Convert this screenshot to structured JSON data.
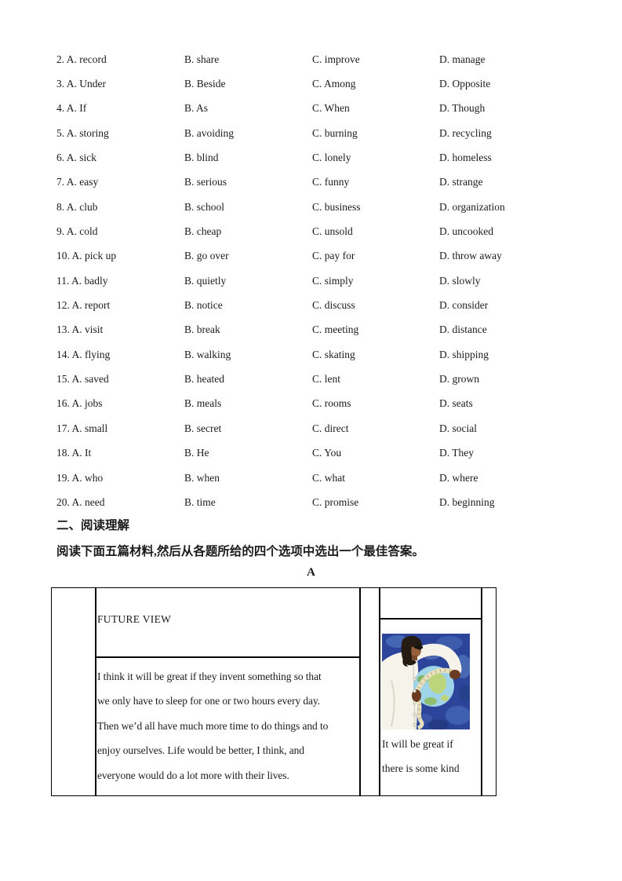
{
  "cloze": {
    "rows": [
      [
        "2. A. record",
        "B. share",
        "C. improve",
        "D. manage"
      ],
      [
        "3. A. Under",
        "B. Beside",
        "C. Among",
        "D. Opposite"
      ],
      [
        "4. A. If",
        "B. As",
        "C. When",
        "D. Though"
      ],
      [
        "5. A. storing",
        "B. avoiding",
        "C. burning",
        "D. recycling"
      ],
      [
        "6. A. sick",
        "B. blind",
        "C. lonely",
        "D. homeless"
      ],
      [
        "7. A. easy",
        "B. serious",
        "C. funny",
        "D. strange"
      ],
      [
        "8. A. club",
        "B. school",
        "C. business",
        "D. organization"
      ],
      [
        "9. A. cold",
        "B. cheap",
        "C. unsold",
        "D. uncooked"
      ],
      [
        "10. A. pick up",
        "B. go over",
        "C. pay for",
        "D. throw away"
      ],
      [
        "11. A. badly",
        "B. quietly",
        "C. simply",
        "D. slowly"
      ],
      [
        "12. A. report",
        "B. notice",
        "C. discuss",
        "D. consider"
      ],
      [
        "13. A. visit",
        "B. break",
        "C. meeting",
        "D. distance"
      ],
      [
        "14. A. flying",
        "B. walking",
        "C. skating",
        "D. shipping"
      ],
      [
        "15. A. saved",
        "B. heated",
        "C. lent",
        "D. grown"
      ],
      [
        "16. A. jobs",
        "B. meals",
        "C. rooms",
        "D. seats"
      ],
      [
        "17. A. small",
        "B. secret",
        "C. direct",
        "D. social"
      ],
      [
        "18. A. It",
        "B. He",
        "C. You",
        "D. They"
      ],
      [
        "19. A. who",
        "B. when",
        "C. what",
        "D. where"
      ],
      [
        "20. A. need",
        "B. time",
        "C. promise",
        "D. beginning"
      ]
    ]
  },
  "section2": {
    "heading": "二、阅读理解",
    "instruction": "阅读下面五篇材料,然后从各题所给的四个选项中选出一个最佳答案。",
    "passage_label": "A"
  },
  "reading_table": {
    "title": "FUTURE VIEW",
    "paragraph_lines": [
      "I think it will be great if they invent something so that",
      "we only have to sleep for one or two hours every day.",
      "Then we’d all have much more time to do things and to",
      "enjoy ourselves. Life would be better, I think, and",
      "everyone would do a lot more with their lives."
    ],
    "caption_lines": [
      "It will be great if",
      "there is some kind"
    ],
    "illustration_alt": "woman in white lab coat measuring a globe with a tape"
  },
  "colors": {
    "text": "#1b1b1b",
    "table_border": "#000000",
    "illus_bg": "#2c459a",
    "illus_patch_light": "#4868b4",
    "illus_patch_dark": "#243b84",
    "globe_ocean": "#9fd3e8",
    "globe_land_light": "#bcd47c",
    "globe_land_dark": "#7fb468",
    "tape": "#e9e1bd",
    "coat": "#f6f3ea",
    "skin": "#96603a",
    "hand": "#6b3a22",
    "hair": "#241b12"
  }
}
